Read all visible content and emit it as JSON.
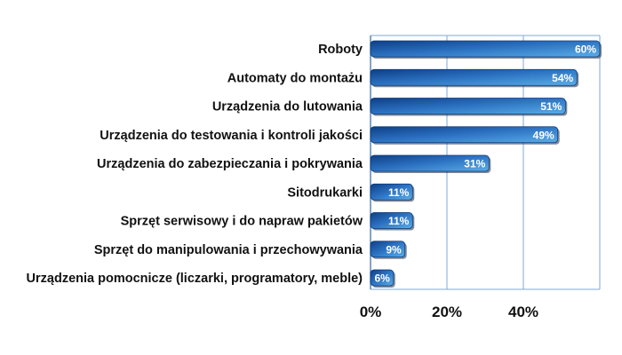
{
  "chart_data": {
    "type": "bar",
    "orientation": "horizontal",
    "categories": [
      "Roboty",
      "Automaty do montażu",
      "Urządzenia do lutowania",
      "Urządzenia do testowania i kontroli jakości",
      "Urządzenia do zabezpieczania i pokrywania",
      "Sitodrukarki",
      "Sprzęt serwisowy i do napraw pakietów",
      "Sprzęt do manipulowania i przechowywania",
      "Urządzenia pomocnicze (liczarki, programatory, meble)"
    ],
    "values": [
      60,
      54,
      51,
      49,
      31,
      11,
      11,
      9,
      6
    ],
    "data_labels": [
      "60%",
      "54%",
      "51%",
      "49%",
      "31%",
      "11%",
      "11%",
      "9%",
      "6%"
    ],
    "title": "",
    "xlabel": "",
    "ylabel": "",
    "xlim": [
      0,
      60
    ],
    "x_ticks": [
      0,
      20,
      40
    ],
    "x_tick_labels": [
      "0%",
      "20%",
      "40%"
    ],
    "grid": true,
    "bar_color": "#2a6fbf",
    "bar_highlight": "#5aaee8",
    "grid_color": "#7fa9d4"
  }
}
